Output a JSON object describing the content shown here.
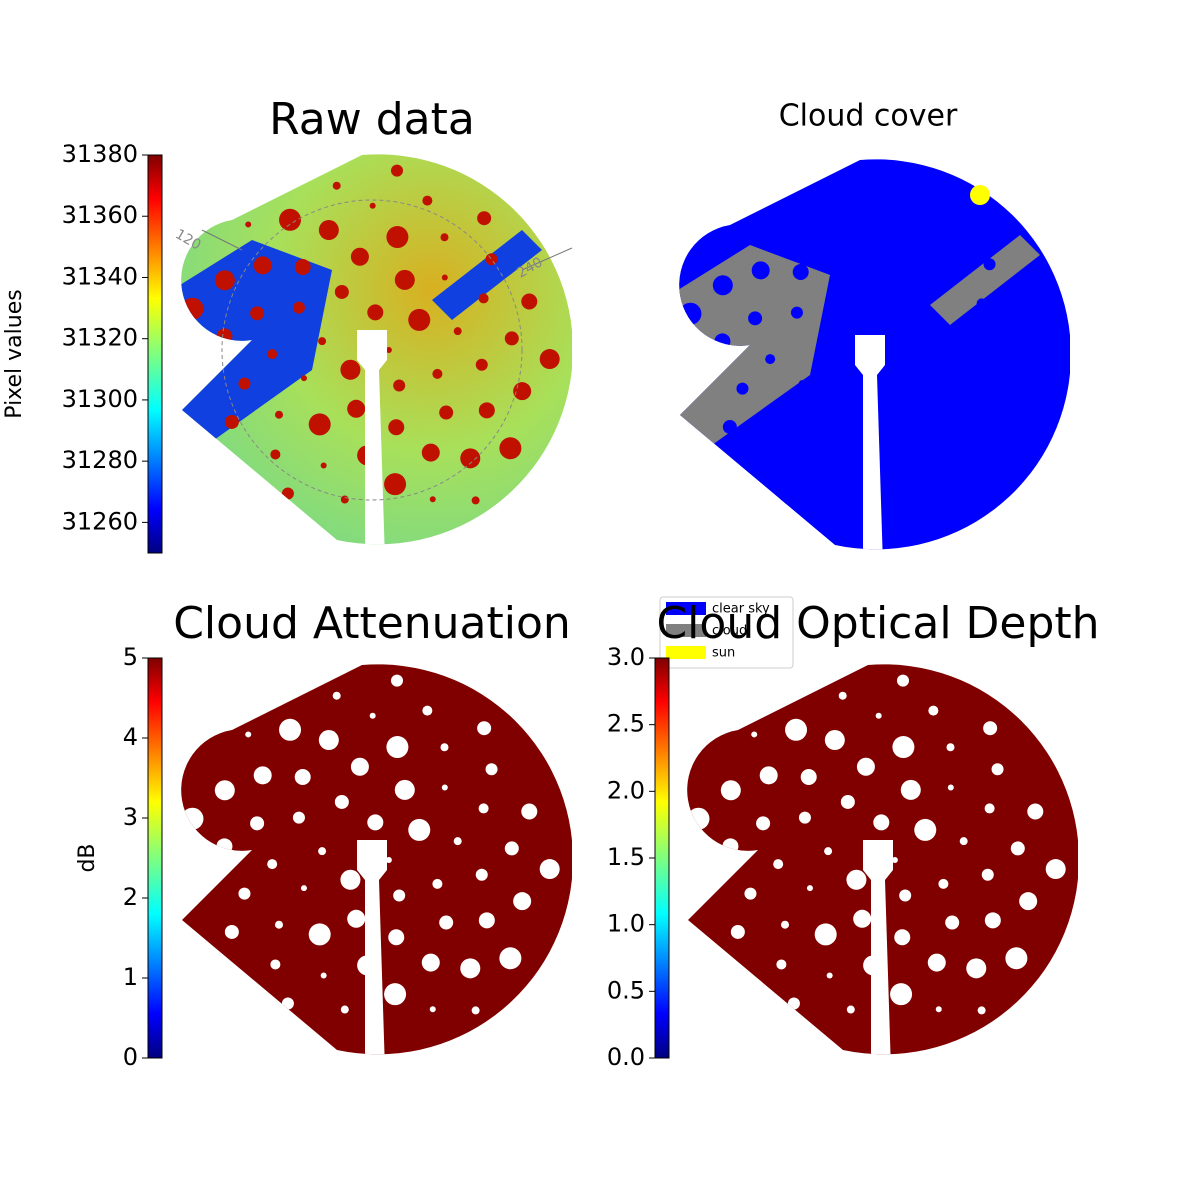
{
  "chart_data": [
    {
      "type": "image",
      "title": "Raw data",
      "colorbar": {
        "label": "Pixel values",
        "lim": [
          31250,
          31380
        ],
        "ticks": [
          31260,
          31280,
          31300,
          31320,
          31340,
          31360,
          31380
        ]
      },
      "annotations": [
        "120",
        "240"
      ]
    },
    {
      "type": "category-image",
      "title": "Cloud cover",
      "legend": [
        {
          "name": "clear sky",
          "color": "#0000ff"
        },
        {
          "name": "cloud",
          "color": "#808080"
        },
        {
          "name": "sun",
          "color": "#ffff00"
        }
      ]
    },
    {
      "type": "image",
      "title": "Cloud Attenuation",
      "color": "#800000",
      "colorbar": {
        "label": "dB",
        "lim": [
          0,
          5
        ],
        "ticks": [
          0,
          1,
          2,
          3,
          4,
          5
        ]
      }
    },
    {
      "type": "image",
      "title": "Cloud Optical Depth",
      "color": "#800000",
      "colorbar": {
        "lim": [
          0,
          3
        ],
        "ticks": [
          {
            "value": 0,
            "label": "0.0"
          },
          0.5,
          {
            "value": 1,
            "label": "1.0"
          },
          1.5,
          {
            "value": 2,
            "label": "2.0"
          },
          2.5,
          {
            "value": 3,
            "label": "3.0"
          }
        ]
      }
    }
  ]
}
